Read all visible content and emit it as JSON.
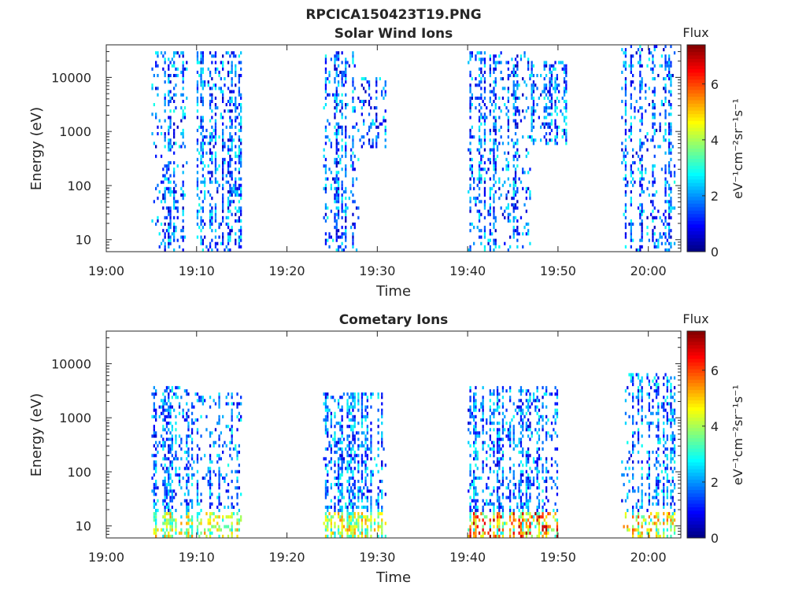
{
  "figure": {
    "title": "RPCICA150423T19.PNG"
  },
  "colorbar": {
    "label": "Flux",
    "unit_text": "eV⁻¹cm⁻²sr⁻¹s⁻¹",
    "ticks": [
      "0",
      "2",
      "4",
      "6"
    ],
    "range": [
      0,
      7.4
    ],
    "colormap": "jet"
  },
  "chart_data": [
    {
      "type": "heatmap",
      "title": "Solar Wind Ions",
      "xlabel": "Time",
      "ylabel": "Energy (eV)",
      "x_ticks": [
        "19:00",
        "19:10",
        "19:20",
        "19:30",
        "19:40",
        "19:50",
        "20:00"
      ],
      "y_ticks": [
        "10",
        "100",
        "1000",
        "10000"
      ],
      "y_scale": "log",
      "xlim": [
        "19:00",
        "20:03"
      ],
      "ylim": [
        6,
        40000
      ],
      "z_range": [
        0,
        7.4
      ],
      "activity_bursts": [
        {
          "start": "19:05",
          "end": "19:09",
          "energy_range": [
            6,
            30000
          ],
          "typical_flux": 1.5
        },
        {
          "start": "19:10",
          "end": "19:15",
          "energy_range": [
            6,
            30000
          ],
          "typical_flux": 1.5
        },
        {
          "start": "19:24",
          "end": "19:28",
          "energy_range": [
            6,
            30000
          ],
          "typical_flux": 1.5
        },
        {
          "start": "19:28",
          "end": "19:31",
          "energy_range": [
            500,
            10000
          ],
          "typical_flux": 2
        },
        {
          "start": "19:40",
          "end": "19:47",
          "energy_range": [
            6,
            30000
          ],
          "typical_flux": 1.5
        },
        {
          "start": "19:47",
          "end": "19:51",
          "energy_range": [
            600,
            20000
          ],
          "typical_flux": 2
        },
        {
          "start": "19:57",
          "end": "20:03",
          "energy_range": [
            6,
            40000
          ],
          "typical_flux": 1.5
        }
      ]
    },
    {
      "type": "heatmap",
      "title": "Cometary Ions",
      "xlabel": "Time",
      "ylabel": "Energy (eV)",
      "x_ticks": [
        "19:00",
        "19:10",
        "19:20",
        "19:30",
        "19:40",
        "19:50",
        "20:00"
      ],
      "y_ticks": [
        "10",
        "100",
        "1000",
        "10000"
      ],
      "y_scale": "log",
      "xlim": [
        "19:00",
        "20:03"
      ],
      "ylim": [
        6,
        40000
      ],
      "z_range": [
        0,
        7.4
      ],
      "activity_bursts": [
        {
          "start": "19:05",
          "end": "19:09",
          "energy_range": [
            6,
            4000
          ],
          "low_energy_peak_flux": 5.5
        },
        {
          "start": "19:09",
          "end": "19:15",
          "energy_range": [
            6,
            3000
          ],
          "low_energy_peak_flux": 5.5
        },
        {
          "start": "19:24",
          "end": "19:31",
          "energy_range": [
            6,
            3000
          ],
          "low_energy_peak_flux": 5.5
        },
        {
          "start": "19:40",
          "end": "19:50",
          "energy_range": [
            6,
            4000
          ],
          "low_energy_peak_flux": 7.2
        },
        {
          "start": "19:57",
          "end": "20:03",
          "energy_range": [
            6,
            7000
          ],
          "low_energy_peak_flux": 6
        }
      ]
    }
  ]
}
